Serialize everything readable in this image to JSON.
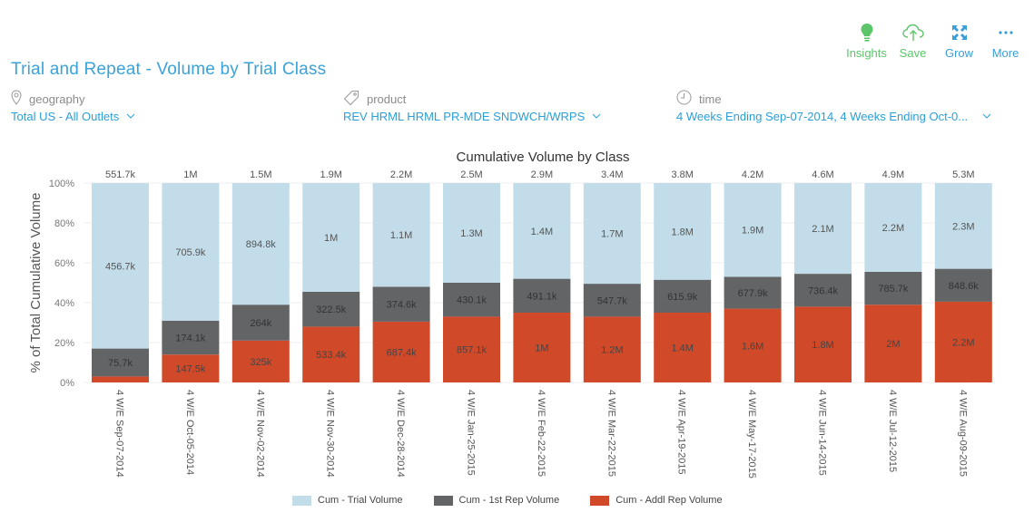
{
  "toolbar": {
    "items": [
      {
        "label": "Insights",
        "icon": "lightbulb-icon",
        "color": "#5cc56a"
      },
      {
        "label": "Save",
        "icon": "cloud-upload-icon",
        "color": "#5cc56a"
      },
      {
        "label": "Grow",
        "icon": "expand-icon",
        "color": "#3a9fd6"
      },
      {
        "label": "More",
        "icon": "more-dots-icon",
        "color": "#3a9fd6"
      }
    ]
  },
  "page_title": "Trial and Repeat - Volume by Trial Class",
  "filters": {
    "geography": {
      "caption": "geography",
      "value": "Total US - All Outlets"
    },
    "product": {
      "caption": "product",
      "value": "REV HRML HRML PR-MDE SNDWCH/WRPS"
    },
    "time": {
      "caption": "time",
      "value": "4 Weeks Ending Sep-07-2014, 4 Weeks Ending Oct-0..."
    }
  },
  "colors": {
    "trial": "#c2dde9",
    "first_rep": "#636466",
    "addl_rep": "#d04a2a",
    "accent_blue": "#2b9fda",
    "accent_green": "#5cc56a"
  },
  "chart_data": {
    "type": "bar",
    "stacked": true,
    "normalized": true,
    "title": "Cumulative Volume by Class",
    "xlabel": "",
    "ylabel": "% of Total Cumulative Volume",
    "ylim": [
      0,
      100
    ],
    "yticks": [
      "0%",
      "20%",
      "40%",
      "60%",
      "80%",
      "100%"
    ],
    "grid": true,
    "legend_position": "bottom",
    "categories": [
      "4 W/E Sep-07-2014",
      "4 W/E Oct-05-2014",
      "4 W/E Nov-02-2014",
      "4 W/E Nov-30-2014",
      "4 W/E Dec-28-2014",
      "4 W/E Jan-25-2015",
      "4 W/E Feb-22-2015",
      "4 W/E Mar-22-2015",
      "4 W/E Apr-19-2015",
      "4 W/E May-17-2015",
      "4 W/E Jun-14-2015",
      "4 W/E Jul-12-2015",
      "4 W/E Aug-09-2015"
    ],
    "totals": [
      "551.7k",
      "1M",
      "1.5M",
      "1.9M",
      "2.2M",
      "2.5M",
      "2.9M",
      "3.4M",
      "3.8M",
      "4.2M",
      "4.6M",
      "4.9M",
      "5.3M"
    ],
    "series": [
      {
        "name": "Cum - Addl Rep Volume",
        "color": "#d04a2a",
        "percent": [
          3,
          14,
          21,
          28,
          30.5,
          33,
          35,
          33,
          35,
          37,
          38,
          39,
          40.5
        ],
        "labels": [
          "",
          "147.5k",
          "325k",
          "533.4k",
          "687.4k",
          "857.1k",
          "1M",
          "1.2M",
          "1.4M",
          "1.6M",
          "1.8M",
          "2M",
          "2.2M"
        ]
      },
      {
        "name": "Cum - 1st Rep Volume",
        "color": "#636466",
        "percent": [
          14,
          17,
          18,
          17.5,
          17.5,
          17,
          17,
          16.5,
          16.5,
          16,
          16.5,
          16.5,
          16.5
        ],
        "labels": [
          "75.7k",
          "174.1k",
          "264k",
          "322.5k",
          "374.6k",
          "430.1k",
          "491.1k",
          "547.7k",
          "615.9k",
          "677.9k",
          "736.4k",
          "785.7k",
          "848.6k"
        ]
      },
      {
        "name": "Cum - Trial Volume",
        "color": "#c2dde9",
        "percent": [
          83,
          69,
          61,
          54.5,
          52,
          50,
          48,
          50.5,
          48.5,
          47,
          45.5,
          44.5,
          43
        ],
        "labels": [
          "456.7k",
          "705.9k",
          "894.8k",
          "1M",
          "1.1M",
          "1.3M",
          "1.4M",
          "1.7M",
          "1.8M",
          "1.9M",
          "2.1M",
          "2.2M",
          "2.3M"
        ]
      }
    ],
    "legend": [
      "Cum - Trial Volume",
      "Cum - 1st Rep Volume",
      "Cum - Addl Rep Volume"
    ]
  }
}
